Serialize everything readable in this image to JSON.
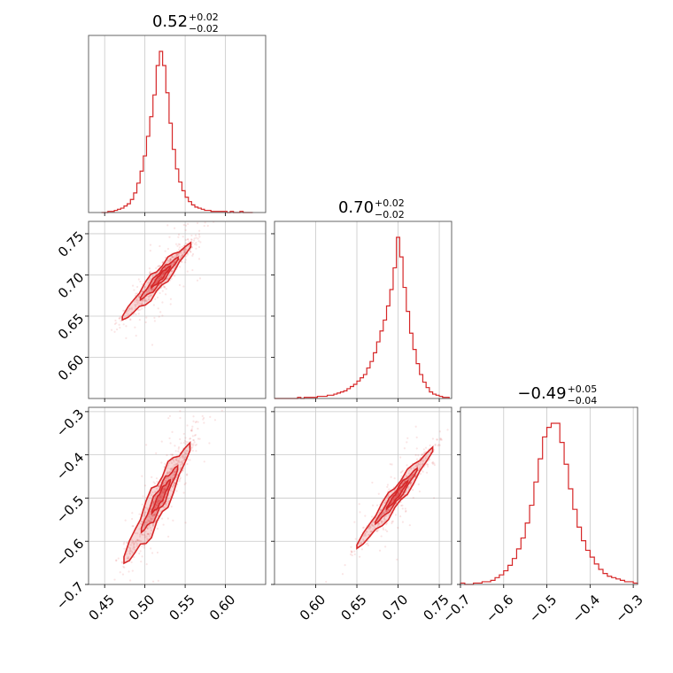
{
  "chart_data": {
    "type": "scatter",
    "subtype": "corner-plot",
    "color": "#d62728",
    "grid": true,
    "parameters": [
      {
        "median": 0.52,
        "plus": 0.02,
        "minus": 0.02,
        "range": [
          0.43,
          0.65
        ],
        "ticks": [
          0.45,
          0.5,
          0.55,
          0.6
        ],
        "tick_labels": [
          "0.45",
          "0.50",
          "0.55",
          "0.60"
        ],
        "title": {
          "main": "0.52",
          "sup": "+0.02",
          "sub": "−0.02"
        }
      },
      {
        "median": 0.7,
        "plus": 0.02,
        "minus": 0.02,
        "range": [
          0.55,
          0.765
        ],
        "ticks": [
          0.6,
          0.65,
          0.7,
          0.75
        ],
        "tick_labels": [
          "0.60",
          "0.65",
          "0.70",
          "0.75"
        ],
        "title": {
          "main": "0.70",
          "sup": "+0.02",
          "sub": "−0.02"
        }
      },
      {
        "median": -0.49,
        "plus": 0.05,
        "minus": 0.04,
        "range": [
          -0.7,
          -0.29
        ],
        "ticks": [
          -0.7,
          -0.6,
          -0.5,
          -0.4,
          -0.3
        ],
        "tick_labels": [
          "−0.7",
          "−0.6",
          "−0.5",
          "−0.4",
          "−0.3"
        ],
        "title": {
          "main": "−0.49",
          "sup": "+0.05",
          "sub": "−0.04"
        }
      }
    ],
    "histograms": [
      {
        "bin_width": 0.004,
        "x": [
          0.448,
          0.452,
          0.456,
          0.46,
          0.464,
          0.468,
          0.472,
          0.476,
          0.48,
          0.484,
          0.488,
          0.492,
          0.496,
          0.5,
          0.504,
          0.508,
          0.512,
          0.516,
          0.52,
          0.524,
          0.528,
          0.532,
          0.536,
          0.54,
          0.544,
          0.548,
          0.552,
          0.556,
          0.56,
          0.564,
          0.568,
          0.572,
          0.576,
          0.58,
          0.584,
          0.588,
          0.592,
          0.596,
          0.6,
          0.604,
          0.608,
          0.612,
          0.616,
          0.62,
          0.624,
          0.628,
          0.632
        ],
        "counts": [
          0,
          0,
          1,
          1,
          2,
          3,
          4,
          6,
          8,
          12,
          18,
          27,
          38,
          52,
          70,
          88,
          108,
          135,
          148,
          135,
          110,
          82,
          58,
          40,
          28,
          20,
          14,
          10,
          7,
          5,
          4,
          3,
          2,
          2,
          1,
          1,
          1,
          1,
          1,
          0,
          1,
          0,
          0,
          1,
          0,
          0,
          0
        ]
      },
      {
        "bin_width": 0.004,
        "x": [
          0.552,
          0.556,
          0.56,
          0.564,
          0.568,
          0.572,
          0.576,
          0.58,
          0.584,
          0.588,
          0.592,
          0.596,
          0.6,
          0.604,
          0.608,
          0.612,
          0.616,
          0.62,
          0.624,
          0.628,
          0.632,
          0.636,
          0.64,
          0.644,
          0.648,
          0.652,
          0.656,
          0.66,
          0.664,
          0.668,
          0.672,
          0.676,
          0.68,
          0.684,
          0.688,
          0.692,
          0.696,
          0.7,
          0.704,
          0.708,
          0.712,
          0.716,
          0.72,
          0.724,
          0.728,
          0.732,
          0.736,
          0.74,
          0.744,
          0.748,
          0.752,
          0.756,
          0.76
        ],
        "counts": [
          0,
          0,
          0,
          0,
          0,
          0,
          0,
          1,
          0,
          1,
          1,
          1,
          1,
          2,
          2,
          2,
          3,
          3,
          4,
          5,
          6,
          7,
          9,
          11,
          13,
          16,
          19,
          22,
          28,
          34,
          42,
          52,
          62,
          72,
          85,
          100,
          120,
          148,
          130,
          102,
          80,
          60,
          45,
          32,
          22,
          15,
          10,
          6,
          4,
          3,
          2,
          1,
          1
        ]
      },
      {
        "bin_width": 0.01,
        "x": [
          -0.695,
          -0.685,
          -0.675,
          -0.665,
          -0.655,
          -0.645,
          -0.635,
          -0.625,
          -0.615,
          -0.605,
          -0.595,
          -0.585,
          -0.575,
          -0.565,
          -0.555,
          -0.545,
          -0.535,
          -0.525,
          -0.515,
          -0.505,
          -0.495,
          -0.485,
          -0.475,
          -0.465,
          -0.455,
          -0.445,
          -0.435,
          -0.425,
          -0.415,
          -0.405,
          -0.395,
          -0.385,
          -0.375,
          -0.365,
          -0.355,
          -0.345,
          -0.335,
          -0.325,
          -0.315,
          -0.305,
          -0.295
        ],
        "counts": [
          1,
          0,
          0,
          1,
          1,
          2,
          2,
          3,
          5,
          7,
          10,
          14,
          19,
          26,
          34,
          45,
          58,
          75,
          92,
          108,
          115,
          118,
          118,
          104,
          88,
          70,
          55,
          42,
          32,
          25,
          20,
          15,
          11,
          8,
          6,
          5,
          4,
          3,
          2,
          2,
          1
        ]
      }
    ],
    "correlations": [
      {
        "x_param": 0,
        "y_param": 1,
        "slope": 1.05,
        "scatter_along": 0.022,
        "scatter_across": 0.006,
        "x_center": 0.522,
        "y_center": 0.7,
        "x_min": 0.472,
        "x_max": 0.557
      },
      {
        "x_param": 0,
        "y_param": 2,
        "slope": 3.2,
        "scatter_along": 0.022,
        "scatter_across": 0.007,
        "x_center": 0.522,
        "y_center": -0.49,
        "x_min": 0.474,
        "x_max": 0.556
      },
      {
        "x_param": 1,
        "y_param": 2,
        "slope": 2.45,
        "scatter_along": 0.022,
        "scatter_across": 0.005,
        "x_center": 0.7,
        "y_center": -0.49,
        "x_min": 0.65,
        "x_max": 0.742
      }
    ]
  }
}
